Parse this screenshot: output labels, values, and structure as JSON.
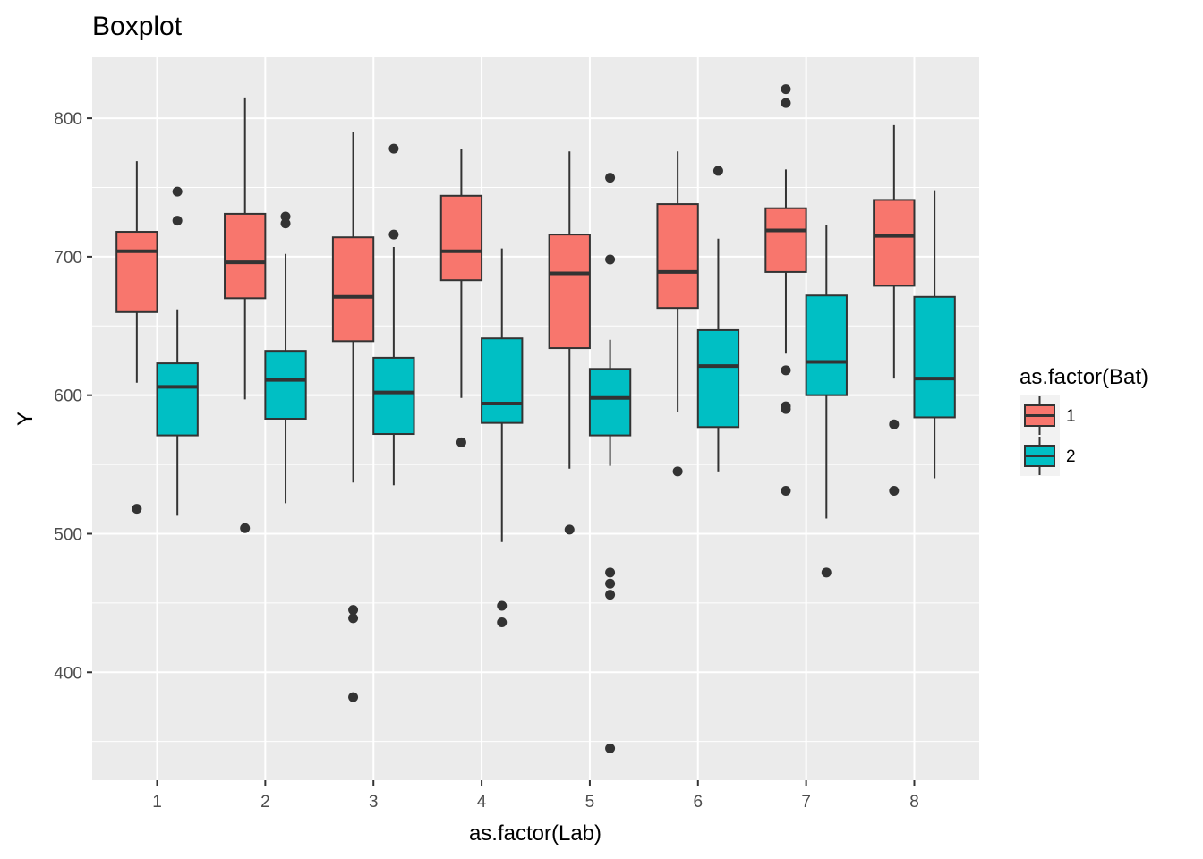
{
  "chart_data": {
    "type": "boxplot",
    "title": "Boxplot",
    "xlabel": "as.factor(Lab)",
    "ylabel": "Y",
    "ylim": [
      322,
      844
    ],
    "yticks": [
      400,
      500,
      600,
      700,
      800
    ],
    "categories": [
      "1",
      "2",
      "3",
      "4",
      "5",
      "6",
      "7",
      "8"
    ],
    "grid": true,
    "legend": {
      "title": "as.factor(Bat)",
      "position": "right",
      "items": [
        {
          "label": "1",
          "color": "#F8766D"
        },
        {
          "label": "2",
          "color": "#00BFC4"
        }
      ]
    },
    "series": [
      {
        "name": "1",
        "color": "#F8766D",
        "boxes": [
          {
            "category": "1",
            "whisker_low": 609,
            "q1": 660,
            "median": 704,
            "q3": 718,
            "whisker_high": 769,
            "outliers": [
              518
            ]
          },
          {
            "category": "2",
            "whisker_low": 597,
            "q1": 670,
            "median": 696,
            "q3": 731,
            "whisker_high": 815,
            "outliers": [
              504
            ]
          },
          {
            "category": "3",
            "whisker_low": 537,
            "q1": 639,
            "median": 671,
            "q3": 714,
            "whisker_high": 790,
            "outliers": [
              445,
              439,
              382
            ]
          },
          {
            "category": "4",
            "whisker_low": 598,
            "q1": 683,
            "median": 704,
            "q3": 744,
            "whisker_high": 778,
            "outliers": [
              566
            ]
          },
          {
            "category": "5",
            "whisker_low": 547,
            "q1": 634,
            "median": 688,
            "q3": 716,
            "whisker_high": 776,
            "outliers": [
              503
            ]
          },
          {
            "category": "6",
            "whisker_low": 588,
            "q1": 663,
            "median": 689,
            "q3": 738,
            "whisker_high": 776,
            "outliers": [
              545
            ]
          },
          {
            "category": "7",
            "whisker_low": 630,
            "q1": 689,
            "median": 719,
            "q3": 735,
            "whisker_high": 763,
            "outliers": [
              821,
              811,
              618,
              592,
              590,
              531
            ]
          },
          {
            "category": "8",
            "whisker_low": 612,
            "q1": 679,
            "median": 715,
            "q3": 741,
            "whisker_high": 795,
            "outliers": [
              579,
              531
            ]
          }
        ]
      },
      {
        "name": "2",
        "color": "#00BFC4",
        "boxes": [
          {
            "category": "1",
            "whisker_low": 513,
            "q1": 571,
            "median": 606,
            "q3": 623,
            "whisker_high": 662,
            "outliers": [
              747,
              726
            ]
          },
          {
            "category": "2",
            "whisker_low": 522,
            "q1": 583,
            "median": 611,
            "q3": 632,
            "whisker_high": 702,
            "outliers": [
              729,
              724
            ]
          },
          {
            "category": "3",
            "whisker_low": 535,
            "q1": 572,
            "median": 602,
            "q3": 627,
            "whisker_high": 707,
            "outliers": [
              778,
              716
            ]
          },
          {
            "category": "4",
            "whisker_low": 494,
            "q1": 580,
            "median": 594,
            "q3": 641,
            "whisker_high": 706,
            "outliers": [
              448,
              436
            ]
          },
          {
            "category": "5",
            "whisker_low": 549,
            "q1": 571,
            "median": 598,
            "q3": 619,
            "whisker_high": 640,
            "outliers": [
              757,
              698,
              472,
              464,
              456,
              345
            ]
          },
          {
            "category": "6",
            "whisker_low": 545,
            "q1": 577,
            "median": 621,
            "q3": 647,
            "whisker_high": 713,
            "outliers": [
              762
            ]
          },
          {
            "category": "7",
            "whisker_low": 511,
            "q1": 600,
            "median": 624,
            "q3": 672,
            "whisker_high": 723,
            "outliers": [
              472
            ]
          },
          {
            "category": "8",
            "whisker_low": 540,
            "q1": 584,
            "median": 612,
            "q3": 671,
            "whisker_high": 748,
            "outliers": []
          }
        ]
      }
    ]
  }
}
